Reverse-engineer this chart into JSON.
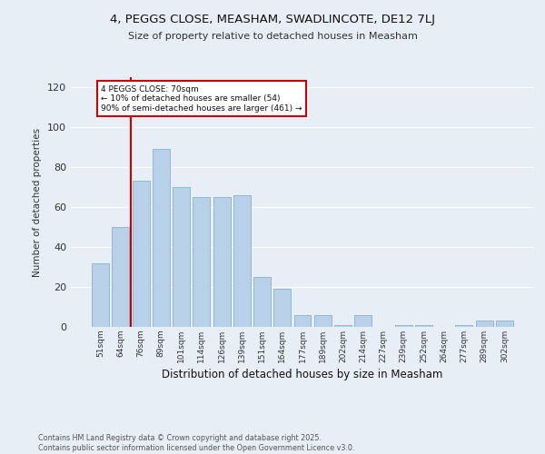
{
  "title": "4, PEGGS CLOSE, MEASHAM, SWADLINCOTE, DE12 7LJ",
  "subtitle": "Size of property relative to detached houses in Measham",
  "xlabel": "Distribution of detached houses by size in Measham",
  "ylabel": "Number of detached properties",
  "bar_color": "#b8d0e8",
  "bar_edge_color": "#7aaac8",
  "background_color": "#e8eef5",
  "grid_color": "#ffffff",
  "annotation_text_line1": "4 PEGGS CLOSE: 70sqm",
  "annotation_text_line2": "← 10% of detached houses are smaller (54)",
  "annotation_text_line3": "90% of semi-detached houses are larger (461) →",
  "annotation_box_color": "#ffffff",
  "annotation_box_edge": "#cc0000",
  "annotation_line_color": "#cc0000",
  "footer_line1": "Contains HM Land Registry data © Crown copyright and database right 2025.",
  "footer_line2": "Contains public sector information licensed under the Open Government Licence v3.0.",
  "categories": [
    "51sqm",
    "64sqm",
    "76sqm",
    "89sqm",
    "101sqm",
    "114sqm",
    "126sqm",
    "139sqm",
    "151sqm",
    "164sqm",
    "177sqm",
    "189sqm",
    "202sqm",
    "214sqm",
    "227sqm",
    "239sqm",
    "252sqm",
    "264sqm",
    "277sqm",
    "289sqm",
    "302sqm"
  ],
  "values": [
    32,
    50,
    73,
    89,
    70,
    65,
    65,
    66,
    25,
    19,
    6,
    6,
    1,
    6,
    0,
    1,
    1,
    0,
    1,
    3,
    3
  ],
  "ylim": [
    0,
    125
  ],
  "yticks": [
    0,
    20,
    40,
    60,
    80,
    100,
    120
  ]
}
